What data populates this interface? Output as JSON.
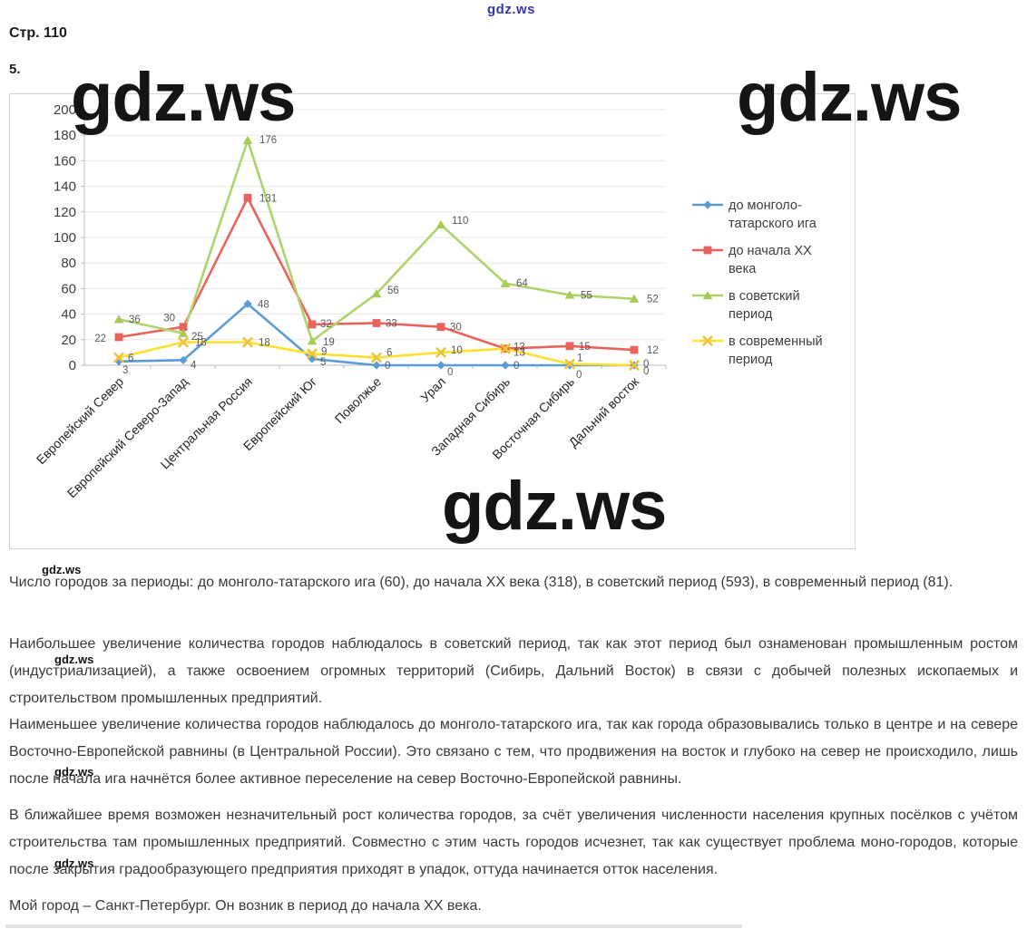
{
  "page": {
    "page_label": "Стр. 110",
    "item_label": "5."
  },
  "watermarks": {
    "site": "gdz.ws",
    "top_color": "#3434bd"
  },
  "chart_data": {
    "type": "line",
    "title": "",
    "xlabel": "",
    "ylabel": "",
    "categories": [
      "Европейский Север",
      "Европейский Северо-Запад",
      "Центральная Россия",
      "Европейский Юг",
      "Поволжье",
      "Урал",
      "Западная Сибирь",
      "Восточная Сибирь",
      "Дальний восток"
    ],
    "series": [
      {
        "name": "до монголо-татарского ига",
        "legend_lines": [
          "до монголо-",
          "татарского ига"
        ],
        "marker": "diamond",
        "color": "#5B9BD5",
        "marker_color": "#5B9BD5",
        "values": [
          3,
          4,
          48,
          5,
          0,
          0,
          0,
          0,
          0
        ]
      },
      {
        "name": "до начала XX века",
        "legend_lines": [
          "до начала XX",
          "века"
        ],
        "marker": "square",
        "color": "#E8635C",
        "marker_color": "#E8635C",
        "values": [
          22,
          30,
          131,
          32,
          33,
          30,
          13,
          15,
          12
        ]
      },
      {
        "name": "в советский период",
        "legend_lines": [
          "в советский",
          "период"
        ],
        "marker": "triangle",
        "color": "#AFD36A",
        "marker_color": "#A6CC57",
        "values": [
          36,
          25,
          176,
          19,
          56,
          110,
          64,
          55,
          52
        ]
      },
      {
        "name": "в современный период",
        "legend_lines": [
          "в современный",
          "период"
        ],
        "marker": "x",
        "color": "#FFDF2E",
        "marker_color": "#EFC23B",
        "values": [
          6,
          18,
          18,
          9,
          6,
          10,
          13,
          1,
          0
        ]
      }
    ],
    "ylim": [
      0,
      200
    ],
    "ytick_step": 20,
    "grid": true,
    "legend_position": "right",
    "data_labels": true
  },
  "paragraphs": [
    "Число городов за периоды: до монголо-татарского ига (60), до начала XX века (318), в советский период (593), в современный период (81).",
    "Наибольшее увеличение количества городов наблюдалось в советский период, так как этот период был ознаменован промышленным ростом (индустриализацией), а также освоением огромных территорий (Сибирь, Дальний Восток) в связи с добычей полезных ископаемых и строительством промышленных предприятий.",
    "Наименьшее увеличение количества городов наблюдалось до монголо-татарского ига, так как города образовывались только в центре и на севере Восточно-Европейской равнины (в Центральной России). Это связано с тем, что продвижения на восток и глубоко на север не происходило, лишь после начала ига начнётся более активное переселение на север Восточно-Европейской равнины.",
    "В ближайшее время возможен незначительный рост количества городов, за счёт увеличения численности населения крупных посёлков с учётом строительства там промышленных предприятий. Совместно с этим часть городов исчезнет, так как существует проблема моно-городов, которые после закрытия градообразующего предприятия приходят в упадок, оттуда начинается отток населения.",
    "Мой город – Санкт-Петербург. Он возник в период  до начала XX века."
  ]
}
